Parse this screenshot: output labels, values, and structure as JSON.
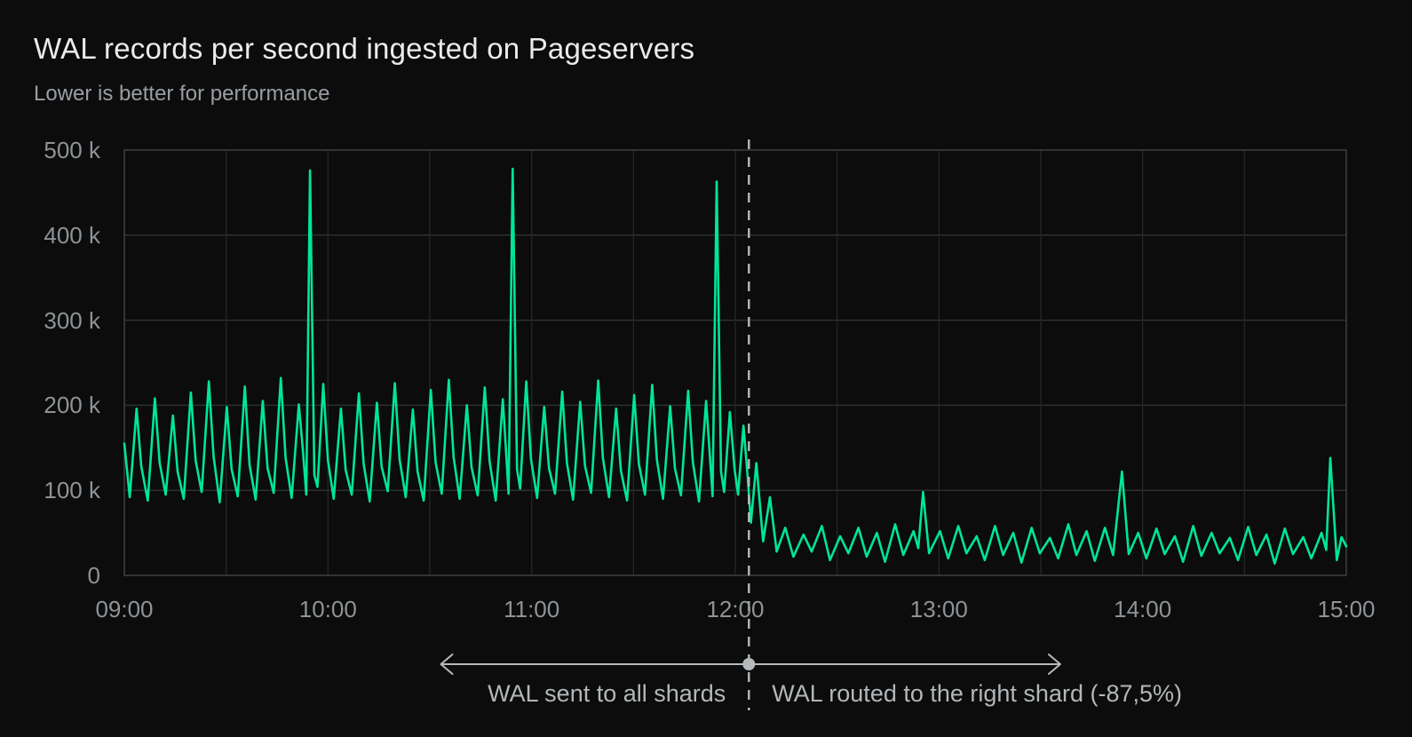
{
  "header": {
    "title": "WAL records per second ingested on Pageservers",
    "subtitle": "Lower is better for performance"
  },
  "annotation": {
    "left_label": "WAL sent to all shards",
    "right_label": "WAL routed to the right shard (-87,5%)",
    "divider_minute": 184,
    "divider_time": "12:04",
    "arrow_start_minute": 93,
    "arrow_end_minute": 276
  },
  "colors": {
    "background": "#0b0c0b",
    "line": "#00e599",
    "grid_h": "#2d302d",
    "grid_v": "#232623",
    "border": "#3b3e3b",
    "axis_text": "#8f9397",
    "title_text": "#e9ebed",
    "subtitle_text": "#9a9ea3",
    "annotation": "#b6b9bc"
  },
  "chart_data": {
    "type": "line",
    "title": "WAL records per second ingested on Pageservers",
    "subtitle": "Lower is better for performance",
    "xlabel": "",
    "ylabel": "",
    "x_unit": "minutes since 09:00",
    "x_range_minutes": [
      0,
      360
    ],
    "y_unit": "thousands of WAL records per second",
    "y_range_k": [
      0,
      500
    ],
    "grid": true,
    "legend_position": "none",
    "x_gridline_interval_minutes": 30,
    "x_ticks": [
      {
        "minute": 0,
        "label": "09:00"
      },
      {
        "minute": 60,
        "label": "10:00"
      },
      {
        "minute": 120,
        "label": "11:00"
      },
      {
        "minute": 180,
        "label": "12:00"
      },
      {
        "minute": 240,
        "label": "13:00"
      },
      {
        "minute": 300,
        "label": "14:00"
      },
      {
        "minute": 360,
        "label": "15:00"
      }
    ],
    "y_ticks": [
      {
        "value_k": 500,
        "label": "500 k"
      },
      {
        "value_k": 400,
        "label": "400 k"
      },
      {
        "value_k": 300,
        "label": "300 k"
      },
      {
        "value_k": 200,
        "label": "200 k"
      },
      {
        "value_k": 100,
        "label": "100 k"
      },
      {
        "value_k": 0,
        "label": "0"
      }
    ],
    "key_events": {
      "pre_noon_hourly_spikes_k": [
        [
          54.7,
          476
        ],
        [
          114.4,
          478
        ],
        [
          174.5,
          463
        ]
      ],
      "post_noon_hourly_spikes_k": [
        [
          235.3,
          98
        ],
        [
          293.9,
          122
        ],
        [
          355.3,
          138
        ]
      ],
      "routing_change_minute": 184,
      "reduction_percent": 87.5
    },
    "series": [
      {
        "name": "WAL records per second",
        "points_t_min_v_k": [
          [
            0,
            155
          ],
          [
            1.6,
            92
          ],
          [
            3.6,
            196
          ],
          [
            5,
            128
          ],
          [
            6.9,
            88
          ],
          [
            9,
            208
          ],
          [
            10.4,
            132
          ],
          [
            12.2,
            95
          ],
          [
            14.3,
            188
          ],
          [
            15.7,
            122
          ],
          [
            17.5,
            90
          ],
          [
            19.6,
            215
          ],
          [
            21,
            135
          ],
          [
            22.8,
            98
          ],
          [
            24.9,
            228
          ],
          [
            26.3,
            140
          ],
          [
            28.1,
            86
          ],
          [
            30.2,
            198
          ],
          [
            31.6,
            125
          ],
          [
            33.4,
            93
          ],
          [
            35.5,
            222
          ],
          [
            36.9,
            130
          ],
          [
            38.7,
            89
          ],
          [
            40.8,
            205
          ],
          [
            42.2,
            126
          ],
          [
            44,
            97
          ],
          [
            46.1,
            232
          ],
          [
            47.5,
            138
          ],
          [
            49.3,
            91
          ],
          [
            51.4,
            201
          ],
          [
            52.6,
            148
          ],
          [
            53.6,
            95
          ],
          [
            54.7,
            476
          ],
          [
            56,
            118
          ],
          [
            56.9,
            104
          ],
          [
            58.6,
            225
          ],
          [
            60,
            135
          ],
          [
            61.7,
            90
          ],
          [
            63.8,
            196
          ],
          [
            65.2,
            124
          ],
          [
            67,
            95
          ],
          [
            69.1,
            214
          ],
          [
            70.5,
            131
          ],
          [
            72.3,
            87
          ],
          [
            74.4,
            203
          ],
          [
            75.8,
            128
          ],
          [
            77.6,
            99
          ],
          [
            79.7,
            226
          ],
          [
            81.1,
            136
          ],
          [
            82.9,
            92
          ],
          [
            85,
            195
          ],
          [
            86.4,
            122
          ],
          [
            88.2,
            88
          ],
          [
            90.3,
            218
          ],
          [
            91.7,
            133
          ],
          [
            93.5,
            96
          ],
          [
            95.6,
            230
          ],
          [
            97,
            139
          ],
          [
            98.8,
            90
          ],
          [
            100.9,
            200
          ],
          [
            102.3,
            127
          ],
          [
            104.1,
            94
          ],
          [
            106.2,
            221
          ],
          [
            107.6,
            134
          ],
          [
            109.4,
            88
          ],
          [
            111.5,
            207
          ],
          [
            112.4,
            150
          ],
          [
            113.2,
            96
          ],
          [
            114.4,
            478
          ],
          [
            115.7,
            125
          ],
          [
            116.6,
            102
          ],
          [
            118.4,
            228
          ],
          [
            119.8,
            137
          ],
          [
            121.6,
            91
          ],
          [
            123.7,
            198
          ],
          [
            125.1,
            126
          ],
          [
            126.9,
            96
          ],
          [
            129,
            216
          ],
          [
            130.4,
            132
          ],
          [
            132.2,
            89
          ],
          [
            134.3,
            204
          ],
          [
            135.7,
            129
          ],
          [
            137.5,
            97
          ],
          [
            139.6,
            229
          ],
          [
            141,
            138
          ],
          [
            142.8,
            92
          ],
          [
            144.9,
            196
          ],
          [
            146.3,
            123
          ],
          [
            148.1,
            88
          ],
          [
            150.2,
            212
          ],
          [
            151.6,
            131
          ],
          [
            153.4,
            95
          ],
          [
            155.5,
            224
          ],
          [
            156.9,
            136
          ],
          [
            158.7,
            90
          ],
          [
            160.8,
            199
          ],
          [
            162.2,
            126
          ],
          [
            164,
            94
          ],
          [
            166.1,
            217
          ],
          [
            167.5,
            133
          ],
          [
            169.3,
            87
          ],
          [
            171.4,
            205
          ],
          [
            172.4,
            146
          ],
          [
            173.3,
            93
          ],
          [
            174.5,
            463
          ],
          [
            175.8,
            122
          ],
          [
            176.7,
            98
          ],
          [
            178.4,
            192
          ],
          [
            179.8,
            125
          ],
          [
            180.8,
            95
          ],
          [
            182.4,
            176
          ],
          [
            183.6,
            118
          ],
          [
            184.6,
            62
          ],
          [
            186.2,
            132
          ],
          [
            188.2,
            40
          ],
          [
            190.2,
            92
          ],
          [
            192.2,
            28
          ],
          [
            194.7,
            56
          ],
          [
            197.1,
            22
          ],
          [
            200.1,
            48
          ],
          [
            202.5,
            28
          ],
          [
            205.5,
            58
          ],
          [
            207.9,
            18
          ],
          [
            210.9,
            46
          ],
          [
            213.3,
            26
          ],
          [
            216.3,
            56
          ],
          [
            218.7,
            22
          ],
          [
            221.7,
            50
          ],
          [
            224.1,
            16
          ],
          [
            227.1,
            60
          ],
          [
            229.5,
            24
          ],
          [
            232.5,
            52
          ],
          [
            233.9,
            32
          ],
          [
            235.3,
            98
          ],
          [
            237.1,
            26
          ],
          [
            240.3,
            52
          ],
          [
            242.7,
            20
          ],
          [
            245.7,
            58
          ],
          [
            248.1,
            26
          ],
          [
            251.1,
            46
          ],
          [
            253.5,
            18
          ],
          [
            256.5,
            58
          ],
          [
            258.9,
            24
          ],
          [
            261.9,
            50
          ],
          [
            264.3,
            15
          ],
          [
            267.3,
            56
          ],
          [
            269.7,
            26
          ],
          [
            272.7,
            44
          ],
          [
            275.1,
            20
          ],
          [
            278.1,
            60
          ],
          [
            280.5,
            24
          ],
          [
            283.5,
            52
          ],
          [
            285.9,
            17
          ],
          [
            288.9,
            56
          ],
          [
            291.3,
            24
          ],
          [
            293.9,
            122
          ],
          [
            295.9,
            25
          ],
          [
            298.7,
            50
          ],
          [
            301.1,
            20
          ],
          [
            304.1,
            55
          ],
          [
            306.5,
            25
          ],
          [
            309.5,
            46
          ],
          [
            311.9,
            16
          ],
          [
            314.9,
            58
          ],
          [
            317.3,
            23
          ],
          [
            320.3,
            50
          ],
          [
            322.7,
            26
          ],
          [
            325.7,
            44
          ],
          [
            328.1,
            18
          ],
          [
            331.1,
            57
          ],
          [
            333.5,
            24
          ],
          [
            336.5,
            48
          ],
          [
            338.9,
            14
          ],
          [
            341.9,
            55
          ],
          [
            344.3,
            25
          ],
          [
            347.3,
            45
          ],
          [
            349.7,
            20
          ],
          [
            352.7,
            50
          ],
          [
            354.1,
            30
          ],
          [
            355.3,
            138
          ],
          [
            357.2,
            18
          ],
          [
            358.6,
            45
          ],
          [
            360,
            34
          ]
        ]
      }
    ]
  }
}
